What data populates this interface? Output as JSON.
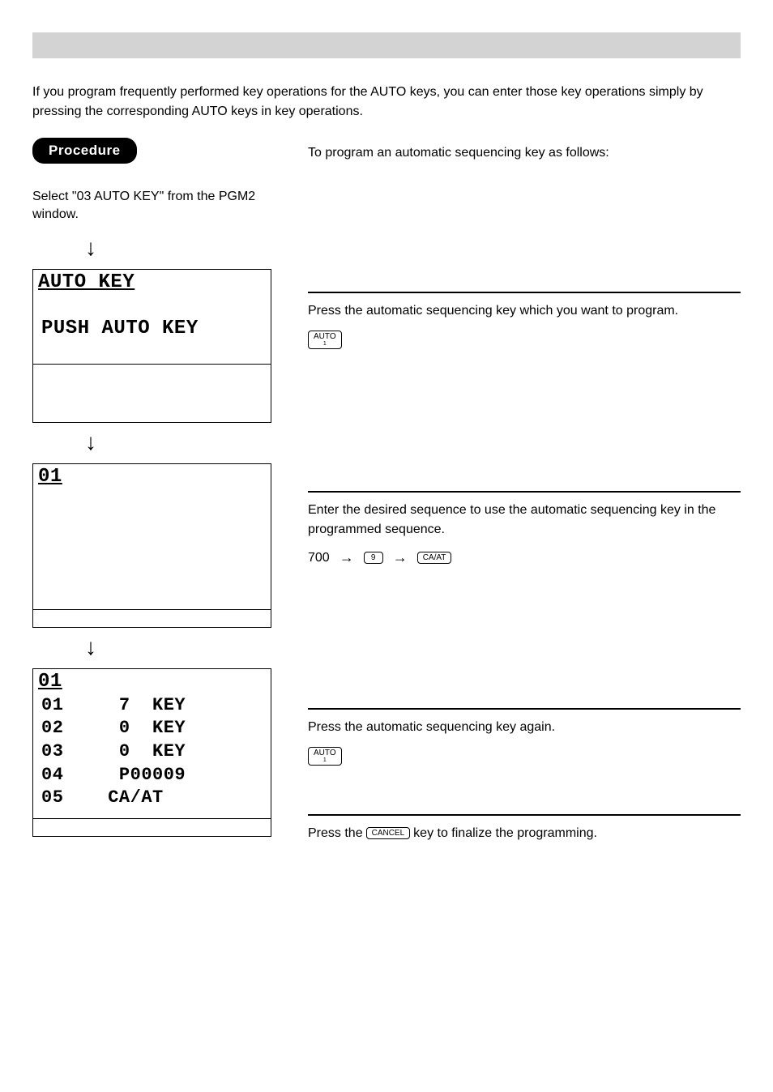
{
  "intro": "If you program frequently performed key operations for the AUTO keys, you can enter those key operations simply by pressing the corresponding AUTO keys in key operations.",
  "procedure_label": "Procedure",
  "example_intro": "To program an automatic sequencing key as follows:",
  "left": {
    "step1": "Select \"03 AUTO KEY\" from the PGM2 window.",
    "screen1_title": "AUTO KEY",
    "screen1_body": "PUSH AUTO KEY",
    "screen2_title": "01",
    "screen3_title": "01",
    "screen3_rows": [
      "01     7  KEY",
      "02     0  KEY",
      "03     0  KEY",
      "04     P00009",
      "05    CA/AT"
    ]
  },
  "right": {
    "step1_text": "Press the automatic sequencing key which you want to program.",
    "step2_text": "Enter the desired sequence to use the automatic sequencing key in the programmed sequence.",
    "step2_seq_start": "700",
    "step3_text": "Press the automatic sequencing key again.",
    "step4_prefix": "Press the",
    "step4_suffix": "key to finalize the programming."
  },
  "keys": {
    "auto": "AUTO",
    "nine": "9",
    "caat": "CA/AT",
    "cancel": "CANCEL"
  },
  "colors": {
    "header_bg": "#d3d3d3",
    "badge_bg": "#000000",
    "badge_fg": "#ffffff",
    "text": "#000000",
    "background": "#ffffff"
  }
}
